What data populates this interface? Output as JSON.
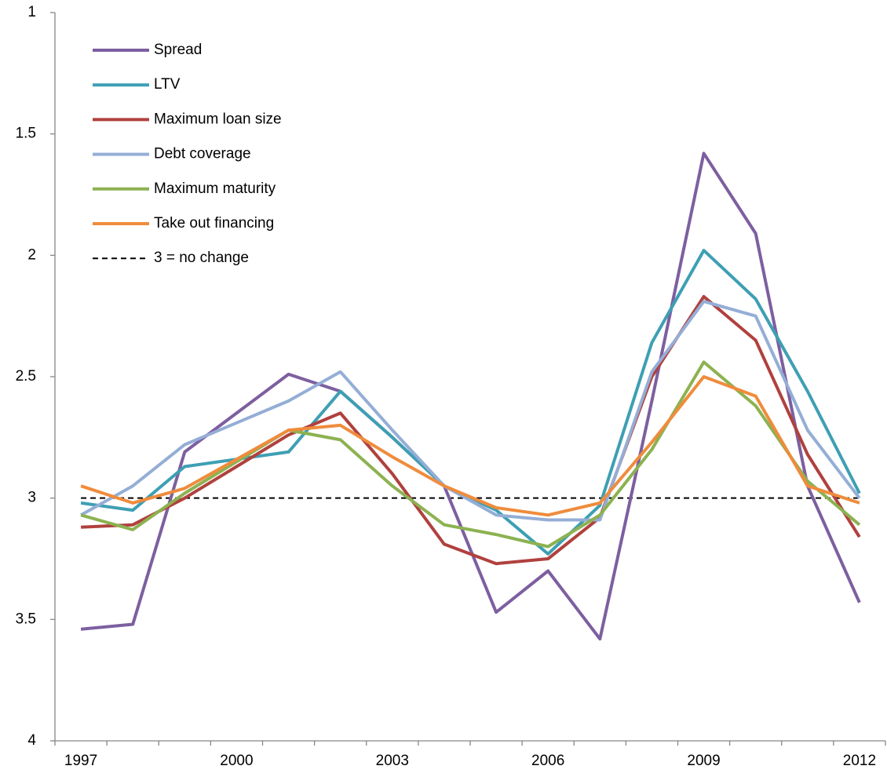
{
  "chart_data": {
    "type": "line",
    "categories": [
      "1997",
      null,
      null,
      "2000",
      null,
      null,
      "2003",
      null,
      null,
      "2006",
      null,
      null,
      "2009",
      null,
      null,
      "2012"
    ],
    "ylim": [
      1,
      4
    ],
    "yticks": [
      1,
      1.5,
      2,
      2.5,
      3,
      3.5,
      4
    ],
    "y_inverted": true,
    "legend": "top-left",
    "series": [
      {
        "name": "Spread",
        "color": "#7d5fa0",
        "values": [
          3.54,
          3.52,
          2.81,
          2.65,
          2.49,
          2.56,
          2.75,
          2.95,
          3.47,
          3.3,
          3.58,
          2.6,
          1.58,
          1.91,
          2.95,
          3.43
        ]
      },
      {
        "name": "LTV",
        "color": "#3e9fb4",
        "values": [
          3.02,
          3.05,
          2.87,
          2.84,
          2.81,
          2.56,
          2.75,
          2.95,
          3.05,
          3.23,
          3.03,
          2.36,
          1.98,
          2.18,
          2.56,
          2.98
        ]
      },
      {
        "name": "Maximum loan size",
        "color": "#b0413e",
        "values": [
          3.12,
          3.11,
          3.0,
          2.87,
          2.74,
          2.65,
          2.9,
          3.19,
          3.27,
          3.25,
          3.08,
          2.5,
          2.17,
          2.35,
          2.82,
          3.16
        ]
      },
      {
        "name": "Debt coverage",
        "color": "#94aed6",
        "values": [
          3.07,
          2.95,
          2.78,
          2.69,
          2.6,
          2.48,
          2.72,
          2.95,
          3.07,
          3.09,
          3.09,
          2.48,
          2.19,
          2.25,
          2.72,
          3.0
        ]
      },
      {
        "name": "Maximum maturity",
        "color": "#8cb251",
        "values": [
          3.07,
          3.13,
          2.98,
          2.85,
          2.72,
          2.76,
          2.95,
          3.11,
          3.15,
          3.2,
          3.07,
          2.8,
          2.44,
          2.62,
          2.93,
          3.11
        ]
      },
      {
        "name": "Take out financing",
        "color": "#ef8c3c",
        "values": [
          2.95,
          3.02,
          2.96,
          2.84,
          2.72,
          2.7,
          2.83,
          2.95,
          3.04,
          3.07,
          3.02,
          2.77,
          2.5,
          2.58,
          2.95,
          3.02
        ]
      }
    ],
    "reference_line": {
      "name": "3 = no change",
      "value": 3,
      "color": "#000000"
    }
  }
}
